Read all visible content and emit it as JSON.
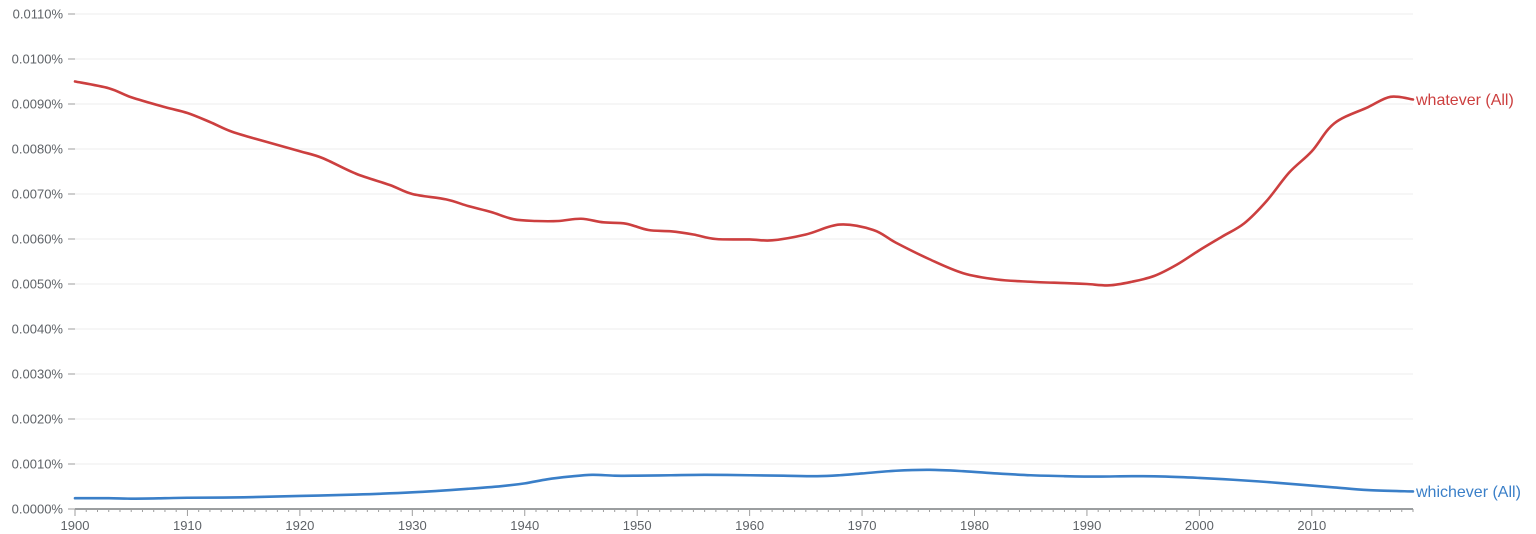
{
  "chart_data": {
    "type": "line",
    "title": "",
    "xlabel": "",
    "ylabel": "",
    "xlim": [
      1900,
      2019
    ],
    "ylim": [
      0,
      0.011
    ],
    "grid": true,
    "y_ticks": [
      0.0,
      0.001,
      0.002,
      0.003,
      0.004,
      0.005,
      0.006,
      0.007,
      0.008,
      0.009,
      0.01,
      0.011
    ],
    "y_tick_labels": [
      "0.0000%",
      "0.0010%",
      "0.0020%",
      "0.0030%",
      "0.0040%",
      "0.0050%",
      "0.0060%",
      "0.0070%",
      "0.0080%",
      "0.0090%",
      "0.0100%",
      "0.0110%"
    ],
    "x_ticks": [
      1900,
      1910,
      1920,
      1930,
      1940,
      1950,
      1960,
      1970,
      1980,
      1990,
      2000,
      2010
    ],
    "x_tick_labels": [
      "1900",
      "1910",
      "1920",
      "1930",
      "1940",
      "1950",
      "1960",
      "1970",
      "1980",
      "1990",
      "2000",
      "2010"
    ],
    "legend": "inline-right",
    "series": [
      {
        "name": "whatever (All)",
        "color": "#cc3f3f",
        "points": [
          [
            1900,
            0.0095
          ],
          [
            1903,
            0.00935
          ],
          [
            1905,
            0.00915
          ],
          [
            1908,
            0.00893
          ],
          [
            1910,
            0.0088
          ],
          [
            1912,
            0.0086
          ],
          [
            1914,
            0.00838
          ],
          [
            1917,
            0.00816
          ],
          [
            1920,
            0.00795
          ],
          [
            1922,
            0.0078
          ],
          [
            1925,
            0.00745
          ],
          [
            1928,
            0.0072
          ],
          [
            1930,
            0.007
          ],
          [
            1933,
            0.00688
          ],
          [
            1935,
            0.00673
          ],
          [
            1937,
            0.0066
          ],
          [
            1939,
            0.00644
          ],
          [
            1941,
            0.0064
          ],
          [
            1943,
            0.0064
          ],
          [
            1945,
            0.00645
          ],
          [
            1947,
            0.00637
          ],
          [
            1949,
            0.00634
          ],
          [
            1951,
            0.0062
          ],
          [
            1953,
            0.00617
          ],
          [
            1955,
            0.0061
          ],
          [
            1957,
            0.006
          ],
          [
            1960,
            0.00599
          ],
          [
            1962,
            0.00597
          ],
          [
            1965,
            0.0061
          ],
          [
            1968,
            0.00632
          ],
          [
            1971,
            0.0062
          ],
          [
            1973,
            0.00592
          ],
          [
            1976,
            0.00555
          ],
          [
            1979,
            0.00524
          ],
          [
            1982,
            0.0051
          ],
          [
            1985,
            0.00505
          ],
          [
            1988,
            0.00502
          ],
          [
            1990,
            0.005
          ],
          [
            1992,
            0.00497
          ],
          [
            1994,
            0.00505
          ],
          [
            1996,
            0.00518
          ],
          [
            1998,
            0.00543
          ],
          [
            2000,
            0.00575
          ],
          [
            2002,
            0.00605
          ],
          [
            2004,
            0.00635
          ],
          [
            2006,
            0.00685
          ],
          [
            2008,
            0.00748
          ],
          [
            2010,
            0.00795
          ],
          [
            2012,
            0.00857
          ],
          [
            2015,
            0.00893
          ],
          [
            2017,
            0.00916
          ],
          [
            2019,
            0.0091
          ]
        ]
      },
      {
        "name": "whichever (All)",
        "color": "#3a7fc8",
        "points": [
          [
            1900,
            0.00024
          ],
          [
            1903,
            0.00024
          ],
          [
            1905,
            0.00023
          ],
          [
            1908,
            0.00024
          ],
          [
            1910,
            0.00025
          ],
          [
            1915,
            0.00026
          ],
          [
            1920,
            0.00029
          ],
          [
            1925,
            0.00032
          ],
          [
            1930,
            0.00037
          ],
          [
            1935,
            0.00045
          ],
          [
            1938,
            0.00051
          ],
          [
            1940,
            0.00057
          ],
          [
            1942,
            0.00066
          ],
          [
            1944,
            0.00072
          ],
          [
            1946,
            0.00076
          ],
          [
            1948,
            0.00074
          ],
          [
            1950,
            0.00074
          ],
          [
            1953,
            0.00075
          ],
          [
            1956,
            0.00076
          ],
          [
            1960,
            0.00075
          ],
          [
            1963,
            0.00074
          ],
          [
            1966,
            0.00073
          ],
          [
            1968,
            0.00075
          ],
          [
            1970,
            0.00079
          ],
          [
            1973,
            0.00085
          ],
          [
            1976,
            0.00087
          ],
          [
            1979,
            0.00084
          ],
          [
            1982,
            0.00079
          ],
          [
            1985,
            0.00075
          ],
          [
            1988,
            0.00073
          ],
          [
            1991,
            0.00072
          ],
          [
            1994,
            0.00073
          ],
          [
            1997,
            0.00072
          ],
          [
            2000,
            0.00069
          ],
          [
            2003,
            0.00065
          ],
          [
            2006,
            0.0006
          ],
          [
            2009,
            0.00054
          ],
          [
            2012,
            0.00048
          ],
          [
            2015,
            0.00042
          ],
          [
            2019,
            0.00039
          ]
        ]
      }
    ]
  }
}
